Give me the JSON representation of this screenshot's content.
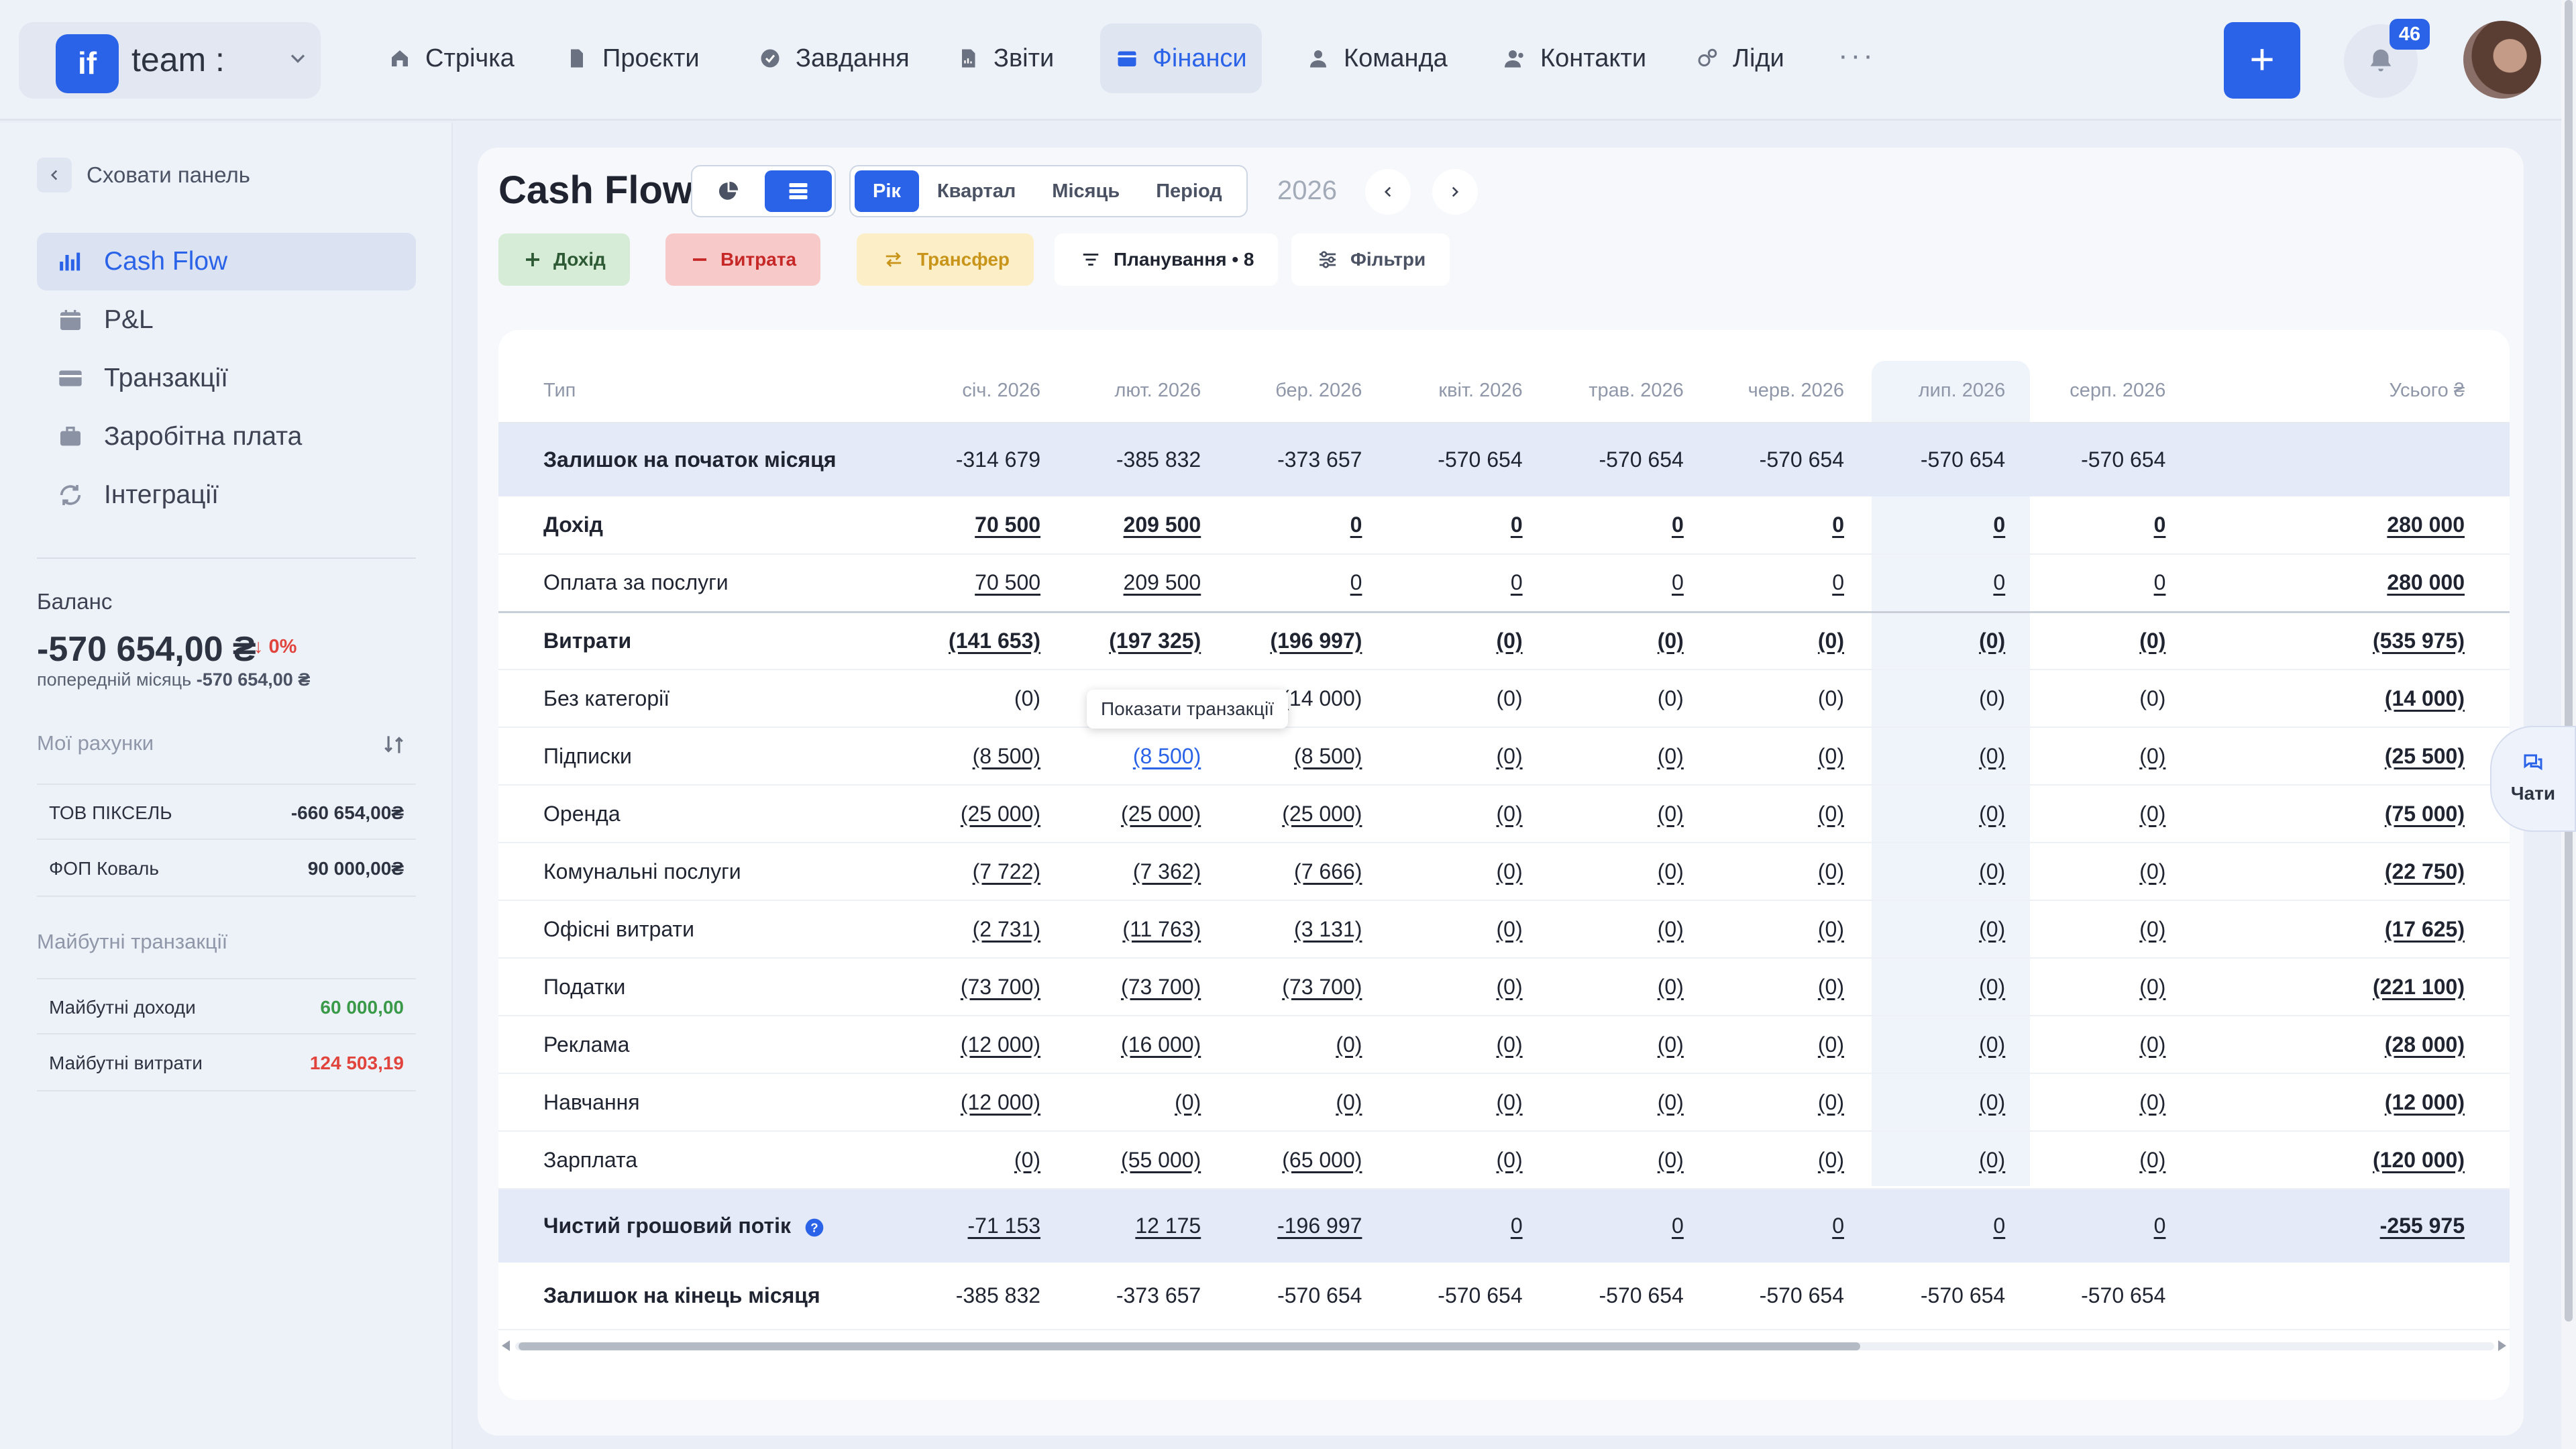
{
  "workspace": {
    "logo": "if",
    "name": "team :"
  },
  "nav": [
    {
      "label": "Стрічка",
      "icon": "home-icon",
      "active": false
    },
    {
      "label": "Проєкти",
      "icon": "document-icon",
      "active": false
    },
    {
      "label": "Завдання",
      "icon": "check-circle-icon",
      "active": false
    },
    {
      "label": "Звіти",
      "icon": "report-icon",
      "active": false
    },
    {
      "label": "Фінанси",
      "icon": "wallet-icon",
      "active": true
    },
    {
      "label": "Команда",
      "icon": "person-icon",
      "active": false
    },
    {
      "label": "Контакти",
      "icon": "contacts-icon",
      "active": false
    },
    {
      "label": "Ліди",
      "icon": "leads-icon",
      "active": false
    }
  ],
  "more": "···",
  "plus": "+",
  "notifications": {
    "count": "46"
  },
  "sidebar": {
    "hide_label": "Сховати панель",
    "items": [
      {
        "label": "Cash Flow",
        "icon": "bar-chart-icon",
        "active": true
      },
      {
        "label": "P&L",
        "icon": "calendar-dollar-icon",
        "active": false
      },
      {
        "label": "Транзакції",
        "icon": "card-icon",
        "active": false
      },
      {
        "label": "Заробітна плата",
        "icon": "briefcase-icon",
        "active": false
      },
      {
        "label": "Інтеграції",
        "icon": "sync-icon",
        "active": false
      }
    ],
    "balance": {
      "label": "Баланс",
      "value": "-570 654,00 ₴",
      "change": "↓ 0%",
      "prev_label": "попередній місяць",
      "prev_value": "-570 654,00 ₴"
    },
    "accounts_label": "Мої рахунки",
    "accounts": [
      {
        "name": "ТОВ ПІКСЕЛЬ",
        "value": "-660 654,00₴"
      },
      {
        "name": "ФОП Коваль",
        "value": "90 000,00₴"
      }
    ],
    "future_label": "Майбутні транзакції",
    "future": [
      {
        "name": "Майбутні доходи",
        "value": "60 000,00",
        "color": "#3a9a4a"
      },
      {
        "name": "Майбутні витрати",
        "value": "124 503,19",
        "color": "#e0443c"
      }
    ]
  },
  "header": {
    "title": "Cash Flow",
    "periods": [
      "Рік",
      "Квартал",
      "Місяць",
      "Період"
    ],
    "active_period": "Рік",
    "year": "2026",
    "actions": {
      "income": "Дохід",
      "expense": "Витрата",
      "transfer": "Трансфер",
      "planning": "Планування • 8",
      "filters": "Фільтри"
    }
  },
  "table": {
    "columns": [
      "Тип",
      "січ. 2026",
      "лют. 2026",
      "бер. 2026",
      "квіт. 2026",
      "трав. 2026",
      "черв. 2026",
      "лип. 2026",
      "серп. 2026",
      "Усього ₴"
    ],
    "highlight_column": "лип. 2026",
    "rows": [
      {
        "label": "Залишок на початок місяця",
        "kind": "band",
        "values": [
          "-314 679",
          "-385 832",
          "-373 657",
          "-570 654",
          "-570 654",
          "-570 654",
          "-570 654",
          "-570 654",
          ""
        ]
      },
      {
        "label": "Дохід",
        "kind": "bold",
        "values": [
          "70 500",
          "209 500",
          "0",
          "0",
          "0",
          "0",
          "0",
          "0",
          "280 000"
        ]
      },
      {
        "label": "Оплата за послуги",
        "kind": "sub-sep",
        "values": [
          "70 500",
          "209 500",
          "0",
          "0",
          "0",
          "0",
          "0",
          "0",
          "280 000"
        ]
      },
      {
        "label": "Витрати",
        "kind": "bold",
        "values": [
          "(141 653)",
          "(197 325)",
          "(196 997)",
          "(0)",
          "(0)",
          "(0)",
          "(0)",
          "(0)",
          "(535 975)"
        ]
      },
      {
        "label": "Без категорії",
        "kind": "plain",
        "values": [
          "(0)",
          "",
          "(14 000)",
          "(0)",
          "(0)",
          "(0)",
          "(0)",
          "(0)",
          "(14 000)"
        ]
      },
      {
        "label": "Підписки",
        "kind": "sub",
        "values": [
          "(8 500)",
          "(8 500)",
          "(8 500)",
          "(0)",
          "(0)",
          "(0)",
          "(0)",
          "(0)",
          "(25 500)"
        ]
      },
      {
        "label": "Оренда",
        "kind": "sub",
        "values": [
          "(25 000)",
          "(25 000)",
          "(25 000)",
          "(0)",
          "(0)",
          "(0)",
          "(0)",
          "(0)",
          "(75 000)"
        ]
      },
      {
        "label": "Комунальні послуги",
        "kind": "sub",
        "values": [
          "(7 722)",
          "(7 362)",
          "(7 666)",
          "(0)",
          "(0)",
          "(0)",
          "(0)",
          "(0)",
          "(22 750)"
        ]
      },
      {
        "label": "Офісні витрати",
        "kind": "sub",
        "values": [
          "(2 731)",
          "(11 763)",
          "(3 131)",
          "(0)",
          "(0)",
          "(0)",
          "(0)",
          "(0)",
          "(17 625)"
        ]
      },
      {
        "label": "Податки",
        "kind": "sub",
        "values": [
          "(73 700)",
          "(73 700)",
          "(73 700)",
          "(0)",
          "(0)",
          "(0)",
          "(0)",
          "(0)",
          "(221 100)"
        ]
      },
      {
        "label": "Реклама",
        "kind": "sub",
        "values": [
          "(12 000)",
          "(16 000)",
          "(0)",
          "(0)",
          "(0)",
          "(0)",
          "(0)",
          "(0)",
          "(28 000)"
        ]
      },
      {
        "label": "Навчання",
        "kind": "sub",
        "values": [
          "(12 000)",
          "(0)",
          "(0)",
          "(0)",
          "(0)",
          "(0)",
          "(0)",
          "(0)",
          "(12 000)"
        ]
      },
      {
        "label": "Зарплата",
        "kind": "sub",
        "values": [
          "(0)",
          "(55 000)",
          "(65 000)",
          "(0)",
          "(0)",
          "(0)",
          "(0)",
          "(0)",
          "(120 000)"
        ]
      },
      {
        "label": "Чистий грошовий потік",
        "kind": "net",
        "values": [
          "-71 153",
          "12 175",
          "-196 997",
          "0",
          "0",
          "0",
          "0",
          "0",
          "-255 975"
        ]
      },
      {
        "label": "Залишок на кінець місяця",
        "kind": "end",
        "values": [
          "-385 832",
          "-373 657",
          "-570 654",
          "-570 654",
          "-570 654",
          "-570 654",
          "-570 654",
          "-570 654",
          ""
        ]
      }
    ]
  },
  "tooltip": "Показати транзакції",
  "chats": "Чати"
}
